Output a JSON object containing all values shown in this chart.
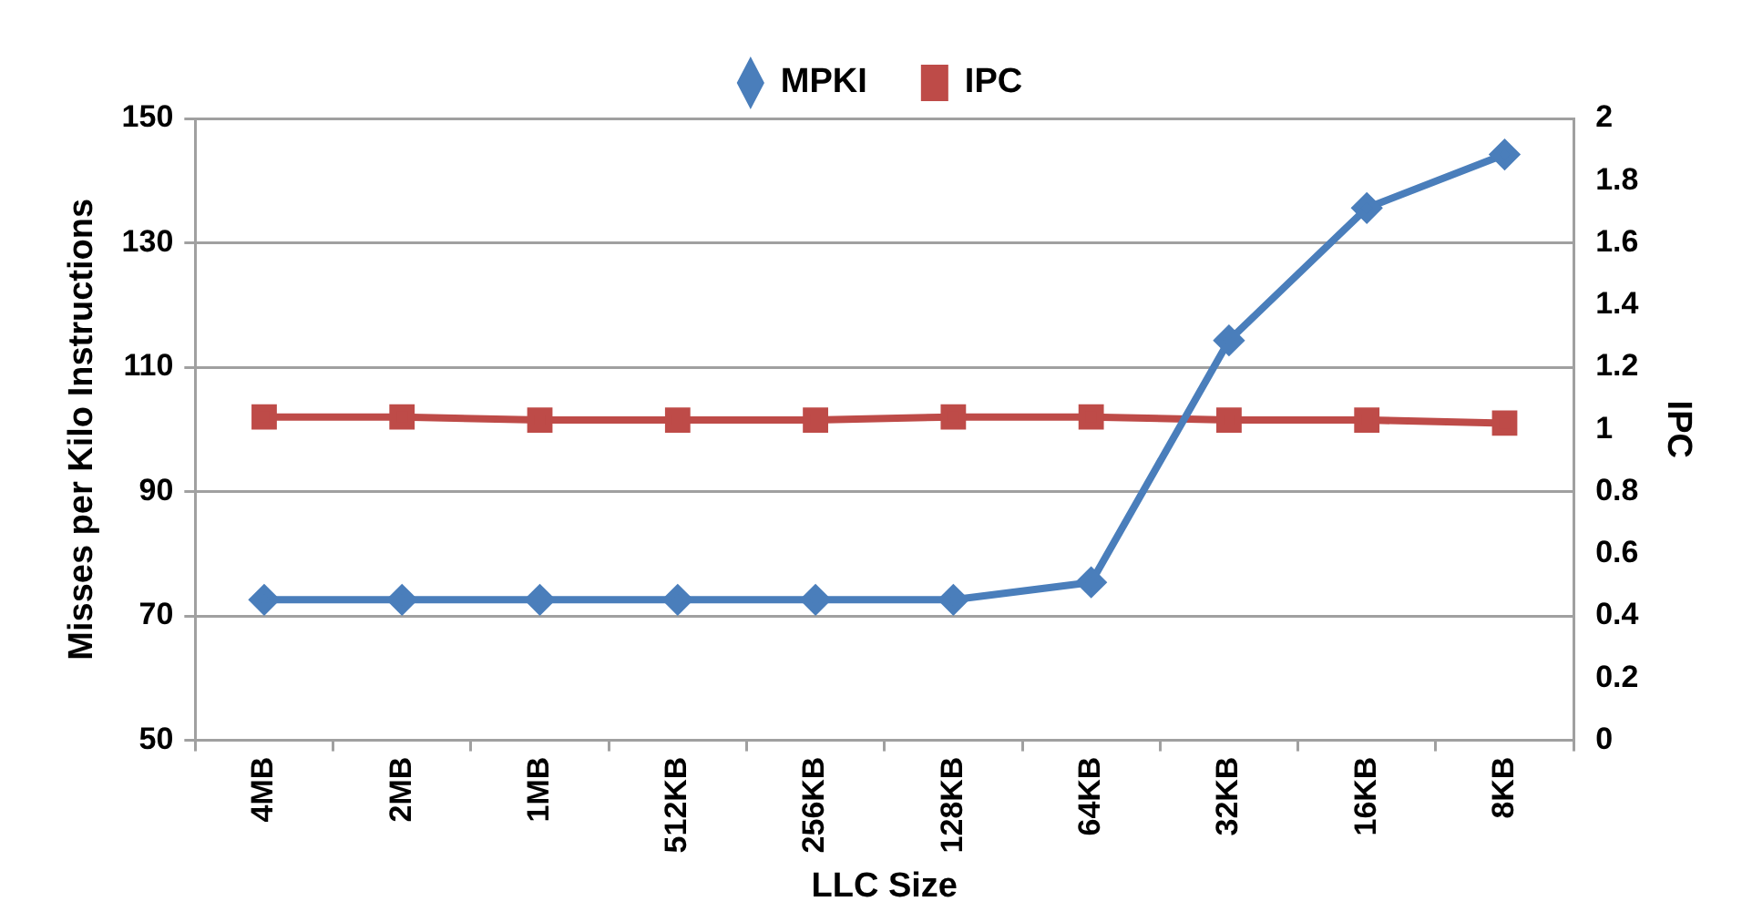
{
  "chart_data": {
    "type": "line",
    "xlabel": "LLC Size",
    "ylabel": "Misses per Kilo Instructions",
    "y2label": "IPC",
    "categories": [
      "4MB",
      "2MB",
      "1MB",
      "512KB",
      "256KB",
      "128KB",
      "64KB",
      "32KB",
      "16KB",
      "8KB"
    ],
    "series": [
      {
        "name": "MPKI",
        "color": "#4a7ebb",
        "marker": "diamond",
        "values": [
          72.6,
          72.6,
          72.6,
          72.6,
          72.6,
          72.6,
          75.4,
          114.3,
          135.6,
          144.2
        ]
      },
      {
        "name": "IPC",
        "color": "#be4b48",
        "marker": "square",
        "axis": "y2",
        "values": [
          1.04,
          1.04,
          1.03,
          1.03,
          1.03,
          1.04,
          1.04,
          1.03,
          1.03,
          1.02
        ]
      }
    ],
    "ylim": [
      50,
      150
    ],
    "yticks": [
      50,
      70,
      90,
      110,
      130,
      150
    ],
    "y2lim": [
      0,
      2
    ],
    "y2ticks": [
      0,
      {
        "value": 0.2,
        "label": "0.2"
      },
      {
        "value": 0.4,
        "label": "0.4"
      },
      {
        "value": 0.6,
        "label": "0.6"
      },
      {
        "value": 0.8,
        "label": "0.8"
      },
      1,
      {
        "value": 1.2,
        "label": "1.2"
      },
      {
        "value": 1.4,
        "label": "1.4"
      },
      {
        "value": 1.6,
        "label": "1.6"
      },
      {
        "value": 1.8,
        "label": "1.8"
      },
      2
    ],
    "grid": "y",
    "legend": "top",
    "line_style": "solid"
  }
}
